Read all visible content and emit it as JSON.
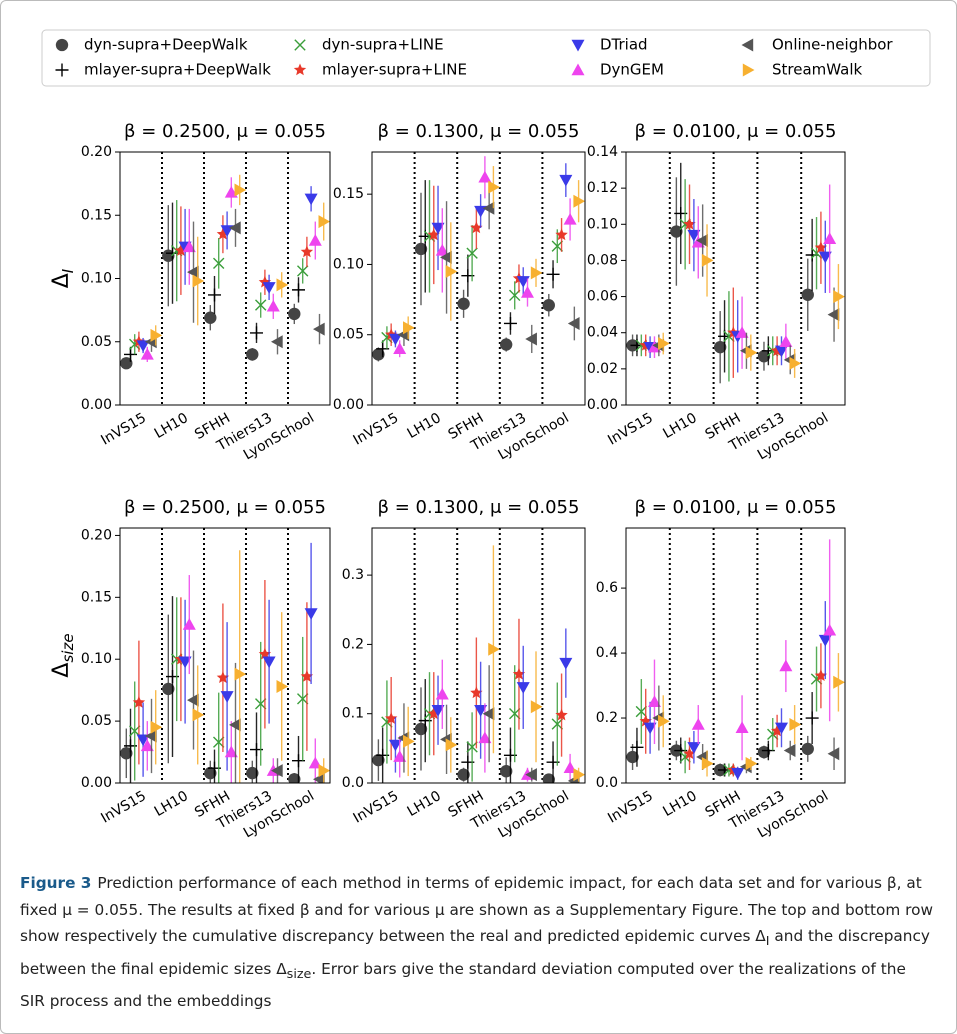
{
  "chart_data": [
    {
      "type": "errorbar",
      "title": "β = 0.2500, μ = 0.055",
      "y_label": "Δ",
      "y_label_subscript": "I",
      "categories": [
        "InVS15",
        "LH10",
        "SFHH",
        "Thiers13",
        "LyonSchool"
      ],
      "ylim": [
        0,
        0.2
      ],
      "yticks": [
        {
          "value": 0,
          "label": "0.00"
        },
        0.05,
        {
          "value": 0.1,
          "label": "0.10"
        },
        0.15,
        {
          "value": 0.2,
          "label": "0.20"
        }
      ],
      "series": [
        {
          "name": "dyn-supra+DeepWalk",
          "color": "#444444",
          "marker": "circle",
          "values": [
            0.033,
            0.118,
            0.069,
            0.04,
            0.072
          ],
          "errors": [
            0.004,
            0.04,
            0.01,
            0.005,
            0.008
          ]
        },
        {
          "name": "mlayer-supra+DeepWalk",
          "color": "#000000",
          "marker": "plus",
          "values": [
            0.04,
            0.12,
            0.087,
            0.057,
            0.091
          ],
          "errors": [
            0.006,
            0.04,
            0.015,
            0.008,
            0.01
          ]
        },
        {
          "name": "dyn-supra+LINE",
          "color": "#3a9e3a",
          "marker": "x",
          "values": [
            0.048,
            0.122,
            0.112,
            0.079,
            0.106
          ],
          "errors": [
            0.008,
            0.04,
            0.02,
            0.01,
            0.01
          ]
        },
        {
          "name": "mlayer-supra+LINE",
          "color": "#e8392a",
          "marker": "star",
          "values": [
            0.05,
            0.122,
            0.135,
            0.097,
            0.121
          ],
          "errors": [
            0.008,
            0.035,
            0.015,
            0.01,
            0.012
          ]
        },
        {
          "name": "DTriad",
          "color": "#3a3ae8",
          "marker": "tri-down",
          "values": [
            0.047,
            0.125,
            0.138,
            0.093,
            0.163
          ],
          "errors": [
            0.006,
            0.03,
            0.015,
            0.01,
            0.01
          ]
        },
        {
          "name": "DynGEM",
          "color": "#ee44ee",
          "marker": "tri-up",
          "values": [
            0.04,
            0.125,
            0.168,
            0.078,
            0.13
          ],
          "errors": [
            0.006,
            0.03,
            0.012,
            0.01,
            0.015
          ]
        },
        {
          "name": "Online-neighbor",
          "color": "#555555",
          "marker": "tri-left",
          "values": [
            0.05,
            0.105,
            0.14,
            0.05,
            0.06
          ],
          "errors": [
            0.008,
            0.04,
            0.015,
            0.01,
            0.012
          ]
        },
        {
          "name": "StreamWalk",
          "color": "#f7b030",
          "marker": "tri-right",
          "values": [
            0.055,
            0.098,
            0.17,
            0.095,
            0.145
          ],
          "errors": [
            0.008,
            0.035,
            0.012,
            0.01,
            0.015
          ]
        }
      ]
    },
    {
      "type": "errorbar",
      "title": "β = 0.1300, μ = 0.055",
      "categories": [
        "InVS15",
        "LH10",
        "SFHH",
        "Thiers13",
        "LyonSchool"
      ],
      "ylim": [
        0,
        0.18
      ],
      "yticks": [
        {
          "value": 0,
          "label": "0.00"
        },
        0.05,
        {
          "value": 0.1,
          "label": "0.10"
        },
        0.15
      ],
      "series": [
        {
          "color": "#444444",
          "marker": "circle",
          "values": [
            0.036,
            0.111,
            0.072,
            0.043,
            0.071
          ],
          "errors": [
            0.005,
            0.04,
            0.01,
            0.005,
            0.008
          ]
        },
        {
          "color": "#000000",
          "marker": "plus",
          "values": [
            0.04,
            0.12,
            0.092,
            0.058,
            0.093
          ],
          "errors": [
            0.006,
            0.04,
            0.015,
            0.008,
            0.01
          ]
        },
        {
          "color": "#3a9e3a",
          "marker": "x",
          "values": [
            0.048,
            0.12,
            0.108,
            0.078,
            0.113
          ],
          "errors": [
            0.008,
            0.04,
            0.02,
            0.01,
            0.012
          ]
        },
        {
          "color": "#e8392a",
          "marker": "star",
          "values": [
            0.05,
            0.121,
            0.126,
            0.09,
            0.121
          ],
          "errors": [
            0.008,
            0.035,
            0.015,
            0.01,
            0.012
          ]
        },
        {
          "color": "#3a3ae8",
          "marker": "tri-down",
          "values": [
            0.047,
            0.126,
            0.138,
            0.088,
            0.16
          ],
          "errors": [
            0.006,
            0.03,
            0.012,
            0.01,
            0.012
          ]
        },
        {
          "color": "#ee44ee",
          "marker": "tri-up",
          "values": [
            0.04,
            0.11,
            0.162,
            0.08,
            0.132
          ],
          "errors": [
            0.006,
            0.03,
            0.015,
            0.01,
            0.015
          ]
        },
        {
          "color": "#555555",
          "marker": "tri-left",
          "values": [
            0.05,
            0.105,
            0.14,
            0.047,
            0.058
          ],
          "errors": [
            0.008,
            0.04,
            0.015,
            0.01,
            0.012
          ]
        },
        {
          "color": "#f7b030",
          "marker": "tri-right",
          "values": [
            0.055,
            0.095,
            0.155,
            0.094,
            0.145
          ],
          "errors": [
            0.008,
            0.035,
            0.015,
            0.01,
            0.015
          ]
        }
      ]
    },
    {
      "type": "errorbar",
      "title": "β = 0.0100, μ = 0.055",
      "categories": [
        "InVS15",
        "LH10",
        "SFHH",
        "Thiers13",
        "LyonSchool"
      ],
      "ylim": [
        0,
        0.14
      ],
      "yticks": [
        {
          "value": 0,
          "label": "0.00"
        },
        0.02,
        0.04,
        0.06,
        0.08,
        {
          "value": 0.1,
          "label": "0.10"
        },
        0.12,
        0.14
      ],
      "series": [
        {
          "color": "#444444",
          "marker": "circle",
          "values": [
            0.033,
            0.096,
            0.032,
            0.027,
            0.061
          ],
          "errors": [
            0.006,
            0.03,
            0.02,
            0.008,
            0.02
          ]
        },
        {
          "color": "#000000",
          "marker": "plus",
          "values": [
            0.033,
            0.106,
            0.038,
            0.03,
            0.083
          ],
          "errors": [
            0.006,
            0.028,
            0.02,
            0.008,
            0.02
          ]
        },
        {
          "color": "#3a9e3a",
          "marker": "x",
          "values": [
            0.033,
            0.1,
            0.038,
            0.03,
            0.084
          ],
          "errors": [
            0.006,
            0.025,
            0.025,
            0.008,
            0.02
          ]
        },
        {
          "color": "#e8392a",
          "marker": "star",
          "values": [
            0.033,
            0.1,
            0.04,
            0.03,
            0.087
          ],
          "errors": [
            0.006,
            0.022,
            0.025,
            0.008,
            0.02
          ]
        },
        {
          "color": "#3a3ae8",
          "marker": "tri-down",
          "values": [
            0.032,
            0.094,
            0.038,
            0.03,
            0.082
          ],
          "errors": [
            0.006,
            0.02,
            0.02,
            0.008,
            0.02
          ]
        },
        {
          "color": "#ee44ee",
          "marker": "tri-up",
          "values": [
            0.032,
            0.09,
            0.04,
            0.035,
            0.092
          ],
          "errors": [
            0.006,
            0.02,
            0.02,
            0.01,
            0.03
          ]
        },
        {
          "color": "#555555",
          "marker": "tri-left",
          "values": [
            0.033,
            0.091,
            0.03,
            0.025,
            0.05
          ],
          "errors": [
            0.006,
            0.02,
            0.01,
            0.008,
            0.015
          ]
        },
        {
          "color": "#f7b030",
          "marker": "tri-right",
          "values": [
            0.034,
            0.08,
            0.029,
            0.023,
            0.06
          ],
          "errors": [
            0.006,
            0.02,
            0.01,
            0.008,
            0.018
          ]
        }
      ]
    },
    {
      "type": "errorbar",
      "title": "β = 0.2500, μ = 0.055",
      "y_label": "Δ",
      "y_label_subscript": "size",
      "categories": [
        "InVS15",
        "LH10",
        "SFHH",
        "Thiers13",
        "LyonSchool"
      ],
      "ylim": [
        0,
        0.206
      ],
      "yticks": [
        {
          "value": 0,
          "label": "0.00"
        },
        0.05,
        {
          "value": 0.1,
          "label": "0.10"
        },
        0.15,
        {
          "value": 0.2,
          "label": "0.20"
        }
      ],
      "series": [
        {
          "color": "#444444",
          "marker": "circle",
          "values": [
            0.024,
            0.076,
            0.008,
            0.008,
            0.003
          ],
          "errors": [
            0.02,
            0.06,
            0.01,
            0.01,
            0.005
          ]
        },
        {
          "color": "#000000",
          "marker": "plus",
          "values": [
            0.03,
            0.086,
            0.012,
            0.027,
            0.018
          ],
          "errors": [
            0.03,
            0.065,
            0.015,
            0.03,
            0.02
          ]
        },
        {
          "color": "#3a9e3a",
          "marker": "x",
          "values": [
            0.042,
            0.1,
            0.033,
            0.064,
            0.068
          ],
          "errors": [
            0.04,
            0.05,
            0.04,
            0.05,
            0.05
          ]
        },
        {
          "color": "#e8392a",
          "marker": "star",
          "values": [
            0.065,
            0.1,
            0.085,
            0.104,
            0.086
          ],
          "errors": [
            0.05,
            0.05,
            0.06,
            0.06,
            0.06
          ]
        },
        {
          "color": "#3a3ae8",
          "marker": "tri-down",
          "values": [
            0.035,
            0.098,
            0.07,
            0.098,
            0.137
          ],
          "errors": [
            0.03,
            0.05,
            0.06,
            0.05,
            0.057
          ]
        },
        {
          "color": "#ee44ee",
          "marker": "tri-up",
          "values": [
            0.03,
            0.128,
            0.025,
            0.01,
            0.016
          ],
          "errors": [
            0.02,
            0.04,
            0.025,
            0.01,
            0.02
          ]
        },
        {
          "color": "#555555",
          "marker": "tri-left",
          "values": [
            0.038,
            0.067,
            0.047,
            0.01,
            0.003
          ],
          "errors": [
            0.03,
            0.04,
            0.05,
            0.01,
            0.005
          ]
        },
        {
          "color": "#f7b030",
          "marker": "tri-right",
          "values": [
            0.045,
            0.055,
            0.088,
            0.078,
            0.01
          ],
          "errors": [
            0.03,
            0.04,
            0.1,
            0.06,
            0.01
          ]
        }
      ]
    },
    {
      "type": "errorbar",
      "title": "β = 0.1300, μ = 0.055",
      "categories": [
        "InVS15",
        "LH10",
        "SFHH",
        "Thiers13",
        "LyonSchool"
      ],
      "ylim": [
        0,
        0.368
      ],
      "yticks": [
        {
          "value": 0,
          "label": "0.0"
        },
        0.1,
        0.2,
        0.3
      ],
      "series": [
        {
          "color": "#444444",
          "marker": "circle",
          "values": [
            0.033,
            0.078,
            0.012,
            0.017,
            0.005
          ],
          "errors": [
            0.03,
            0.06,
            0.01,
            0.02,
            0.005
          ]
        },
        {
          "color": "#000000",
          "marker": "plus",
          "values": [
            0.04,
            0.09,
            0.03,
            0.04,
            0.03
          ],
          "errors": [
            0.04,
            0.06,
            0.03,
            0.04,
            0.03
          ]
        },
        {
          "color": "#3a9e3a",
          "marker": "x",
          "values": [
            0.088,
            0.1,
            0.052,
            0.1,
            0.085
          ],
          "errors": [
            0.06,
            0.06,
            0.05,
            0.07,
            0.06
          ]
        },
        {
          "color": "#e8392a",
          "marker": "star",
          "values": [
            0.093,
            0.1,
            0.13,
            0.157,
            0.098
          ],
          "errors": [
            0.06,
            0.06,
            0.08,
            0.08,
            0.06
          ]
        },
        {
          "color": "#3a3ae8",
          "marker": "tri-down",
          "values": [
            0.055,
            0.105,
            0.105,
            0.138,
            0.173
          ],
          "errors": [
            0.04,
            0.05,
            0.07,
            0.06,
            0.05
          ]
        },
        {
          "color": "#ee44ee",
          "marker": "tri-up",
          "values": [
            0.038,
            0.128,
            0.065,
            0.012,
            0.022
          ],
          "errors": [
            0.03,
            0.05,
            0.05,
            0.01,
            0.02
          ]
        },
        {
          "color": "#555555",
          "marker": "tri-left",
          "values": [
            0.065,
            0.063,
            0.1,
            0.012,
            0.003
          ],
          "errors": [
            0.05,
            0.05,
            0.07,
            0.01,
            0.005
          ]
        },
        {
          "color": "#f7b030",
          "marker": "tri-right",
          "values": [
            0.06,
            0.055,
            0.193,
            0.11,
            0.012
          ],
          "errors": [
            0.05,
            0.04,
            0.15,
            0.08,
            0.01
          ]
        }
      ]
    },
    {
      "type": "errorbar",
      "title": "β = 0.0100, μ = 0.055",
      "categories": [
        "InVS15",
        "LH10",
        "SFHH",
        "Thiers13",
        "LyonSchool"
      ],
      "ylim": [
        0,
        0.785
      ],
      "yticks": [
        {
          "value": 0,
          "label": "0.0"
        },
        0.2,
        0.4,
        0.6
      ],
      "series": [
        {
          "color": "#444444",
          "marker": "circle",
          "values": [
            0.08,
            0.1,
            0.04,
            0.095,
            0.105
          ],
          "errors": [
            0.04,
            0.03,
            0.02,
            0.02,
            0.04
          ]
        },
        {
          "color": "#000000",
          "marker": "plus",
          "values": [
            0.11,
            0.1,
            0.04,
            0.1,
            0.2
          ],
          "errors": [
            0.06,
            0.04,
            0.02,
            0.03,
            0.08
          ]
        },
        {
          "color": "#3a9e3a",
          "marker": "x",
          "values": [
            0.22,
            0.08,
            0.04,
            0.15,
            0.32
          ],
          "errors": [
            0.1,
            0.05,
            0.02,
            0.05,
            0.1
          ]
        },
        {
          "color": "#e8392a",
          "marker": "star",
          "values": [
            0.19,
            0.09,
            0.04,
            0.16,
            0.33
          ],
          "errors": [
            0.1,
            0.05,
            0.02,
            0.05,
            0.1
          ]
        },
        {
          "color": "#3a3ae8",
          "marker": "tri-down",
          "values": [
            0.17,
            0.11,
            0.03,
            0.17,
            0.44
          ],
          "errors": [
            0.08,
            0.05,
            0.02,
            0.06,
            0.12
          ]
        },
        {
          "color": "#ee44ee",
          "marker": "tri-up",
          "values": [
            0.25,
            0.18,
            0.17,
            0.36,
            0.47
          ],
          "errors": [
            0.13,
            0.06,
            0.1,
            0.08,
            0.28
          ]
        },
        {
          "color": "#555555",
          "marker": "tri-left",
          "values": [
            0.2,
            0.08,
            0.05,
            0.1,
            0.09
          ],
          "errors": [
            0.1,
            0.04,
            0.02,
            0.03,
            0.05
          ]
        },
        {
          "color": "#f7b030",
          "marker": "tri-right",
          "values": [
            0.19,
            0.06,
            0.06,
            0.18,
            0.31
          ],
          "errors": [
            0.08,
            0.04,
            0.02,
            0.06,
            0.09
          ]
        }
      ]
    }
  ],
  "caption": {
    "label": "Figure 3",
    "parts": [
      {
        "text": "Prediction performance of each method in terms of epidemic impact, for each data set and for various β, at fixed μ = 0.055. The results at fixed β and for various μ are shown as a Supplementary Figure. The top and bottom row show respectively the cumulative discrepancy between the real and predicted epidemic curves Δ"
      },
      {
        "sub": "I"
      },
      {
        "text": " and the discrepancy between the final epidemic sizes Δ"
      },
      {
        "sub": "size"
      },
      {
        "text": ". Error bars give the standard deviation computed over the realizations of the SIR process and the embeddings"
      }
    ]
  }
}
